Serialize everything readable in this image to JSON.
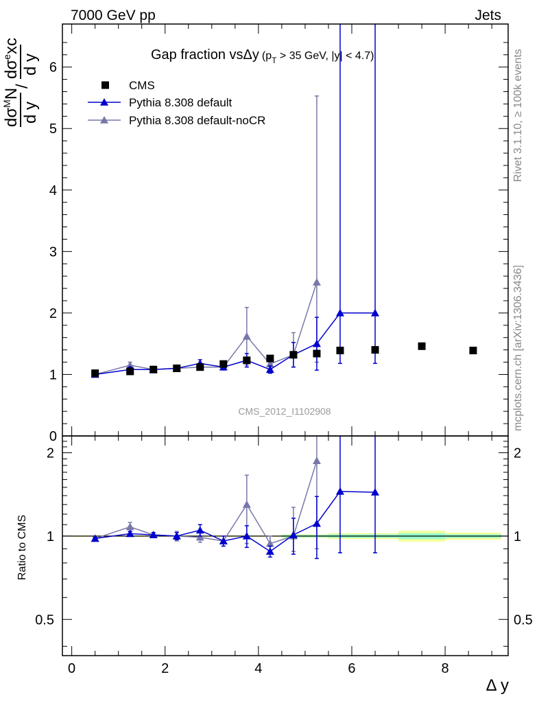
{
  "header": {
    "left": "7000 GeV pp",
    "right": "Jets"
  },
  "side_labels": {
    "top": "Rivet 3.1.10, ≥ 100k events",
    "bottom": "mcplots.cern.ch [arXiv:1306.3436]"
  },
  "colors": {
    "cms": "#000000",
    "default": "#0000cc",
    "nocr": "#7777aa",
    "band_outer": "#f5ff99",
    "band_inner": "#99ffcc"
  },
  "chart_data": [
    {
      "type": "scatter",
      "title": "Gap fraction vsΔy (p_T > 35 GeV, |y| < 4.7)",
      "title_main": "Gap fraction vsΔy",
      "title_cut_open": "(p",
      "title_cut_sub": "T",
      "title_cut_rest": " > 35 GeV, |y| < 4.7)",
      "ylabel": "dσ^M N / d y  /  dσ^e xc / d y",
      "ylabel_parts": {
        "n1": "dσ",
        "n1_sup": "M",
        "n1_rest": "N",
        "d1": "d y",
        "slash": "/",
        "n2": "dσ",
        "n2_sup": "e",
        "n2_rest": "xc",
        "d2": "d y"
      },
      "xlabel": "",
      "xlim": [
        -0.2,
        9.35
      ],
      "ylim": [
        0,
        6.7
      ],
      "yticks": [
        0,
        1,
        2,
        3,
        4,
        5,
        6
      ],
      "watermark": "CMS_2012_I1102908",
      "legend_position": "top-left",
      "series": [
        {
          "name": "CMS",
          "marker": "square",
          "x": [
            0.5,
            1.25,
            1.75,
            2.25,
            2.75,
            3.25,
            3.75,
            4.25,
            4.75,
            5.25,
            5.75,
            6.5,
            7.5,
            8.6
          ],
          "y": [
            1.02,
            1.05,
            1.08,
            1.1,
            1.12,
            1.17,
            1.23,
            1.26,
            1.32,
            1.34,
            1.39,
            1.4,
            1.46,
            1.39
          ]
        },
        {
          "name": "Pythia 8.308 default",
          "marker": "triangle",
          "x": [
            0.5,
            1.25,
            1.75,
            2.25,
            2.75,
            3.25,
            3.75,
            4.25,
            4.75,
            5.25,
            5.75,
            6.5
          ],
          "y": [
            1.0,
            1.08,
            1.08,
            1.1,
            1.18,
            1.12,
            1.23,
            1.08,
            1.32,
            1.5,
            2.0,
            2.0
          ],
          "err_lo": [
            0.02,
            0.04,
            0.03,
            0.04,
            0.06,
            0.04,
            0.11,
            0.06,
            0.2,
            0.43,
            0.82,
            0.82
          ],
          "err_hi": [
            0.02,
            0.04,
            0.03,
            0.04,
            0.06,
            0.04,
            0.11,
            0.06,
            0.2,
            0.43,
            6.0,
            6.0
          ]
        },
        {
          "name": "Pythia 8.308 default-noCR",
          "marker": "triangle",
          "x": [
            0.5,
            1.25,
            1.75,
            2.25,
            2.75,
            3.25,
            3.75,
            4.25,
            4.75,
            5.25
          ],
          "y": [
            1.0,
            1.15,
            1.08,
            1.1,
            1.12,
            1.12,
            1.62,
            1.17,
            1.32,
            2.5
          ],
          "err_lo": [
            0.02,
            0.05,
            0.03,
            0.05,
            0.04,
            0.05,
            0.47,
            0.08,
            0.2,
            1.3
          ],
          "err_hi": [
            0.02,
            0.05,
            0.03,
            0.05,
            0.04,
            0.05,
            0.47,
            0.08,
            0.36,
            3.03
          ]
        }
      ]
    },
    {
      "type": "scatter",
      "title": "",
      "ylabel": "Ratio to CMS",
      "xlabel": "Δ y",
      "xlim": [
        -0.2,
        9.35
      ],
      "ylim": [
        0.37,
        2.3
      ],
      "yticks": [
        0.5,
        1,
        2
      ],
      "xticks": [
        0,
        2,
        4,
        6,
        8
      ],
      "reference_line": 1,
      "bands": [
        {
          "x0": 0.0,
          "x1": 4.5,
          "outer": [
            0.995,
            1.005
          ],
          "inner": [
            0.998,
            1.002
          ]
        },
        {
          "x0": 4.5,
          "x1": 5.5,
          "outer": [
            0.985,
            1.015
          ],
          "inner": [
            0.99,
            1.01
          ]
        },
        {
          "x0": 5.5,
          "x1": 7.0,
          "outer": [
            0.975,
            1.025
          ],
          "inner": [
            0.985,
            1.015
          ]
        },
        {
          "x0": 7.0,
          "x1": 8.0,
          "outer": [
            0.955,
            1.045
          ],
          "inner": [
            0.975,
            1.025
          ]
        },
        {
          "x0": 8.0,
          "x1": 9.2,
          "outer": [
            0.97,
            1.03
          ],
          "inner": [
            0.985,
            1.015
          ]
        }
      ],
      "series": [
        {
          "name": "Pythia 8.308 default",
          "marker": "triangle",
          "x": [
            0.5,
            1.25,
            1.75,
            2.25,
            2.75,
            3.25,
            3.75,
            4.25,
            4.75,
            5.25,
            5.75,
            6.5
          ],
          "y": [
            0.98,
            1.02,
            1.01,
            1.0,
            1.05,
            0.96,
            1.0,
            0.88,
            1.01,
            1.11,
            1.45,
            1.44
          ],
          "err_lo": [
            0.01,
            0.02,
            0.02,
            0.03,
            0.05,
            0.04,
            0.09,
            0.04,
            0.15,
            0.28,
            0.58,
            0.57
          ],
          "err_hi": [
            0.01,
            0.02,
            0.02,
            0.03,
            0.05,
            0.04,
            0.09,
            0.04,
            0.15,
            0.28,
            1.5,
            1.5
          ]
        },
        {
          "name": "Pythia 8.308 default-noCR",
          "marker": "triangle",
          "x": [
            0.5,
            1.25,
            1.75,
            2.25,
            2.75,
            3.25,
            3.75,
            4.25,
            4.75,
            5.25
          ],
          "y": [
            0.98,
            1.08,
            1.01,
            1.0,
            0.99,
            0.96,
            1.3,
            0.94,
            1.0,
            1.87
          ],
          "err_lo": [
            0.01,
            0.04,
            0.02,
            0.04,
            0.04,
            0.04,
            0.36,
            0.06,
            0.12,
            0.97
          ],
          "err_hi": [
            0.01,
            0.04,
            0.02,
            0.04,
            0.04,
            0.04,
            0.36,
            0.06,
            0.27,
            0.5
          ]
        }
      ]
    }
  ]
}
